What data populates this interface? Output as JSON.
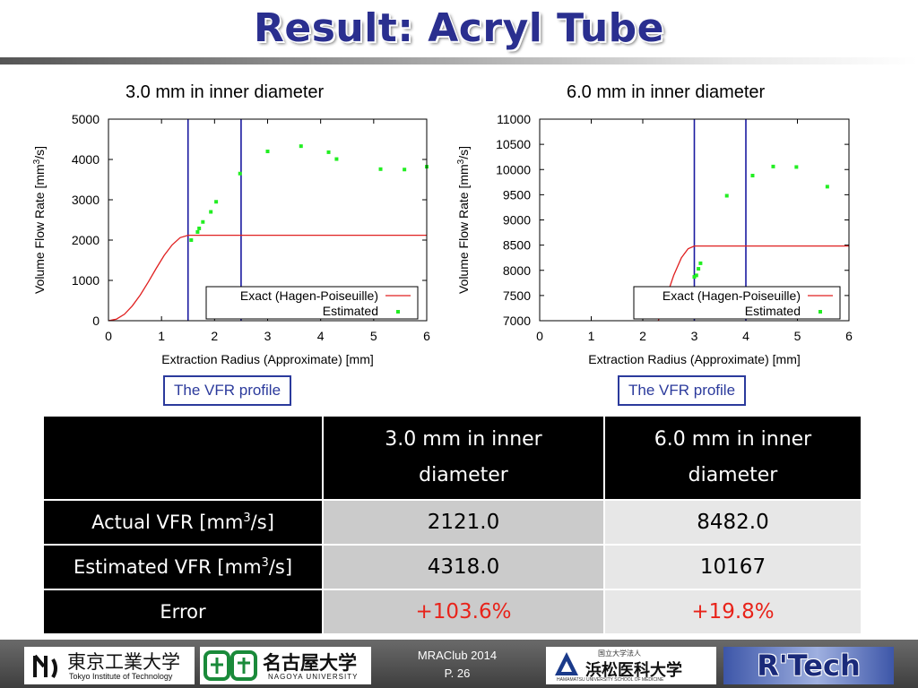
{
  "slide": {
    "title": "Result: Acryl Tube"
  },
  "charts": [
    {
      "caption": "3.0 mm in inner diameter",
      "xlabel": "Extraction Radius (Approximate) [mm]",
      "ylabel_main": "Volume Flow Rate [mm",
      "ylabel_sup": "3",
      "ylabel_end": "/s]",
      "legend": {
        "exact": "Exact (Hagen-Poiseuille)",
        "estimated": "Estimated"
      },
      "vfr_label": "The VFR profile"
    },
    {
      "caption": "6.0 mm in inner diameter",
      "xlabel": "Extraction Radius (Approximate) [mm]",
      "ylabel_main": "Volume Flow Rate [mm",
      "ylabel_sup": "3",
      "ylabel_end": "/s]",
      "legend": {
        "exact": "Exact (Hagen-Poiseuille)",
        "estimated": "Estimated"
      },
      "vfr_label": "The VFR profile"
    }
  ],
  "chart_data": [
    {
      "type": "scatter",
      "title": "3.0 mm in inner diameter",
      "xlabel": "Extraction Radius (Approximate) [mm]",
      "ylabel": "Volume Flow Rate [mm3/s]",
      "xlim": [
        0,
        6
      ],
      "ylim": [
        0,
        5000
      ],
      "xticks": [
        0,
        1,
        2,
        3,
        4,
        5,
        6
      ],
      "yticks": [
        0,
        1000,
        2000,
        3000,
        4000,
        5000
      ],
      "vlines": [
        1.5,
        2.5
      ],
      "grid": false,
      "legend_position": "bottom-right",
      "colors": {
        "exact": "#e02020",
        "estimated": "#22ee22",
        "vline": "#1a1aa0"
      },
      "series": [
        {
          "name": "Exact (Hagen-Poiseuille)",
          "kind": "line",
          "x": [
            0,
            0.15,
            0.3,
            0.45,
            0.6,
            0.75,
            0.9,
            1.05,
            1.2,
            1.35,
            1.5,
            2.0,
            3.0,
            4.0,
            5.0,
            6.0
          ],
          "y": [
            0,
            40,
            160,
            370,
            640,
            960,
            1300,
            1620,
            1880,
            2060,
            2121,
            2121,
            2121,
            2121,
            2121,
            2121
          ]
        },
        {
          "name": "Estimated",
          "kind": "points",
          "x": [
            1.56,
            1.68,
            1.71,
            1.78,
            1.93,
            2.03,
            2.48,
            3.0,
            3.63,
            4.15,
            4.3,
            5.13,
            5.58,
            6.0
          ],
          "y": [
            2000,
            2200,
            2290,
            2450,
            2700,
            2950,
            3650,
            4200,
            4330,
            4180,
            4010,
            3760,
            3750,
            3820
          ]
        }
      ]
    },
    {
      "type": "scatter",
      "title": "6.0 mm in inner diameter",
      "xlabel": "Extraction Radius (Approximate) [mm]",
      "ylabel": "Volume Flow Rate [mm3/s]",
      "xlim": [
        0,
        6
      ],
      "ylim": [
        7000,
        11000
      ],
      "xticks": [
        0,
        1,
        2,
        3,
        4,
        5,
        6
      ],
      "yticks": [
        7000,
        7500,
        8000,
        8500,
        9000,
        9500,
        10000,
        10500,
        11000
      ],
      "vlines": [
        3.0,
        4.0
      ],
      "grid": false,
      "legend_position": "bottom-right",
      "colors": {
        "exact": "#e02020",
        "estimated": "#22ee22",
        "vline": "#1a1aa0"
      },
      "series": [
        {
          "name": "Exact (Hagen-Poiseuille)",
          "kind": "line",
          "x": [
            2.3,
            2.45,
            2.6,
            2.75,
            2.88,
            3.0,
            3.5,
            4.0,
            5.0,
            6.0
          ],
          "y": [
            7000,
            7450,
            7900,
            8250,
            8430,
            8482,
            8482,
            8482,
            8482,
            8482
          ]
        },
        {
          "name": "Estimated",
          "kind": "points",
          "x": [
            2.95,
            3.0,
            3.04,
            3.08,
            3.12,
            3.63,
            4.13,
            4.53,
            4.98,
            5.58
          ],
          "y": [
            7620,
            7870,
            7900,
            8030,
            8140,
            9480,
            9880,
            10060,
            10050,
            9660
          ]
        }
      ]
    }
  ],
  "table": {
    "col_headers": [
      "",
      "3.0 mm in inner diameter",
      "6.0 mm in inner diameter"
    ],
    "rows": [
      {
        "label": "Actual VFR [mm",
        "sup": "3",
        "label_end": "/s]",
        "values": [
          "2121.0",
          "8482.0"
        ]
      },
      {
        "label": "Estimated VFR [mm",
        "sup": "3",
        "label_end": "/s]",
        "values": [
          "4318.0",
          "10167"
        ]
      },
      {
        "label": "Error",
        "sup": "",
        "label_end": "",
        "values": [
          "+103.6%",
          "+19.8%"
        ]
      }
    ]
  },
  "footer": {
    "titech_jp": "東京工業大学",
    "titech_en": "Tokyo Institute of Technology",
    "nagoya_jp": "名古屋大学",
    "nagoya_en": "NAGOYA UNIVERSITY",
    "conference": "MRAClub 2014",
    "page": "P. 26",
    "hamamatsu_small": "国立大学法人",
    "hamamatsu_jp": "浜松医科大学",
    "hamamatsu_en": "HAMAMATSU UNIVERSITY SCHOOL OF MEDICINE",
    "rtech": "R'Tech"
  }
}
